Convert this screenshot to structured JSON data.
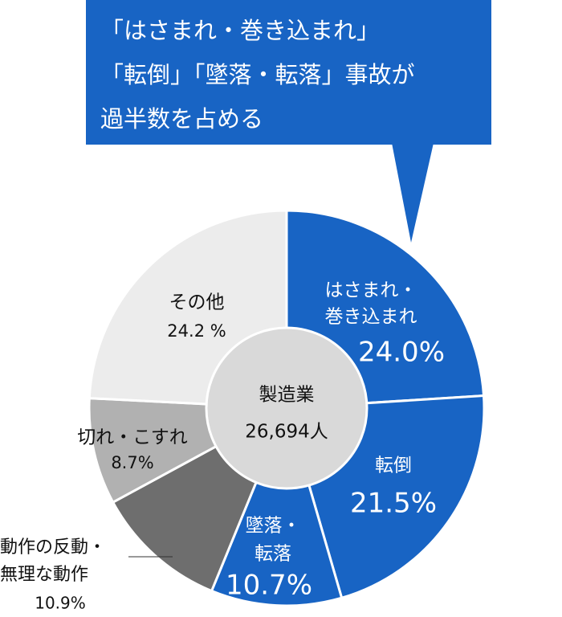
{
  "chart_data": {
    "type": "donut",
    "annotation": [
      "「はさまれ・巻き込まれ」",
      "「転倒」「墜落・転落」事故が",
      "過半数を占める"
    ],
    "center_title": "製造業",
    "center_total": "26,694人",
    "categories": [
      [
        "はさまれ・",
        "巻き込まれ"
      ],
      [
        "転倒"
      ],
      [
        "墜落・",
        "転落"
      ],
      [
        "動作の反動・",
        "無理な動作"
      ],
      [
        "切れ・こすれ"
      ],
      [
        "その他"
      ]
    ],
    "values": [
      24,
      21.5,
      10.7,
      10.9,
      8.7,
      24.2
    ],
    "value_labels": [
      "24.0%",
      "21.5%",
      "10.7%",
      "10.9%",
      "8.7%",
      "24.2 %"
    ],
    "colors": [
      "#1864c4",
      "#1864c4",
      "#1864c4",
      "#6e6e6e",
      "#b1b1b1",
      "#ececec"
    ]
  }
}
